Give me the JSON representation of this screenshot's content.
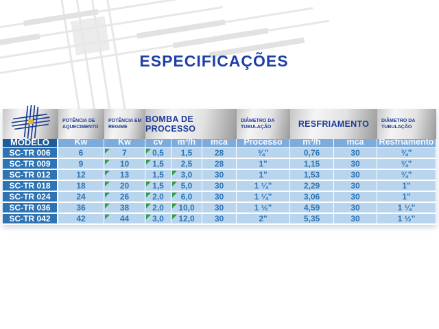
{
  "title": "ESPECIFICAÇÕES",
  "colors": {
    "title_text": "#1d3fa6",
    "band_text": "#1d3c96",
    "subheader_bg": "#7fabda",
    "modelo_header_bg": "#1e5c9e",
    "model_cell_bg": "#2e74b5",
    "data_cell_bg": "#b9d5ee",
    "data_text": "#2e74b5",
    "comment_flag": "#2f9e44",
    "logo_line": "#1d3c8f",
    "logo_center": "#e7b626"
  },
  "table": {
    "logo_icon": "weave-cross-logo",
    "group_headers": [
      {
        "label": "POTÊNCIA DE AQUECIMENTO",
        "size": "small"
      },
      {
        "label": "POTÊNCIA EM REGIME",
        "size": "small"
      },
      {
        "label": "BOMBA DE PROCESSO",
        "size": "large"
      },
      {
        "label": "DIÂMETRO DA TUBULAÇÃO",
        "size": "small"
      },
      {
        "label": "RESFRIAMENTO",
        "size": "large"
      },
      {
        "label": "DIÂMETRO DA TUBULAÇÃO",
        "size": "small"
      }
    ],
    "columns": [
      "MODELO",
      "Kw",
      "Kw",
      "cv",
      "m³/h",
      "mca",
      "Processo",
      "m³/h",
      "mca",
      "Resfriamento"
    ],
    "rows": [
      {
        "model": "SC-TR 006",
        "cells": [
          "6",
          "7",
          "0,5",
          "1,5",
          "28",
          "¾\"",
          "0,76",
          "30",
          "¾\""
        ],
        "flags": [
          false,
          true,
          true,
          false,
          false,
          false,
          false,
          false,
          false
        ]
      },
      {
        "model": "SC-TR 009",
        "cells": [
          "9",
          "10",
          "1,5",
          "2,5",
          "28",
          "1\"",
          "1,15",
          "30",
          "¾\""
        ],
        "flags": [
          false,
          true,
          true,
          false,
          false,
          false,
          false,
          false,
          false
        ]
      },
      {
        "model": "SC-TR 012",
        "cells": [
          "12",
          "13",
          "1,5",
          "3,0",
          "30",
          "1\"",
          "1,53",
          "30",
          "¾\""
        ],
        "flags": [
          false,
          true,
          false,
          true,
          false,
          false,
          false,
          false,
          false
        ]
      },
      {
        "model": "SC-TR 018",
        "cells": [
          "18",
          "20",
          "1,5",
          "5,0",
          "30",
          "1 ¼\"",
          "2,29",
          "30",
          "1\""
        ],
        "flags": [
          false,
          true,
          true,
          true,
          false,
          false,
          false,
          false,
          false
        ]
      },
      {
        "model": "SC-TR 024",
        "cells": [
          "24",
          "26",
          "2,0",
          "6,0",
          "30",
          "1 ¼\"",
          "3,06",
          "30",
          "1\""
        ],
        "flags": [
          false,
          true,
          true,
          true,
          false,
          false,
          false,
          false,
          false
        ]
      },
      {
        "model": "SC-TR 036",
        "cells": [
          "36",
          "38",
          "2,0",
          "10,0",
          "30",
          "1 ½\"",
          "4,59",
          "30",
          "1 ¼\""
        ],
        "flags": [
          false,
          true,
          true,
          true,
          false,
          false,
          false,
          false,
          false
        ]
      },
      {
        "model": "SC-TR 042",
        "cells": [
          "42",
          "44",
          "3,0",
          "12,0",
          "30",
          "2\"",
          "5,35",
          "30",
          "1 ½\""
        ],
        "flags": [
          false,
          true,
          true,
          true,
          false,
          false,
          false,
          false,
          false
        ]
      }
    ]
  }
}
